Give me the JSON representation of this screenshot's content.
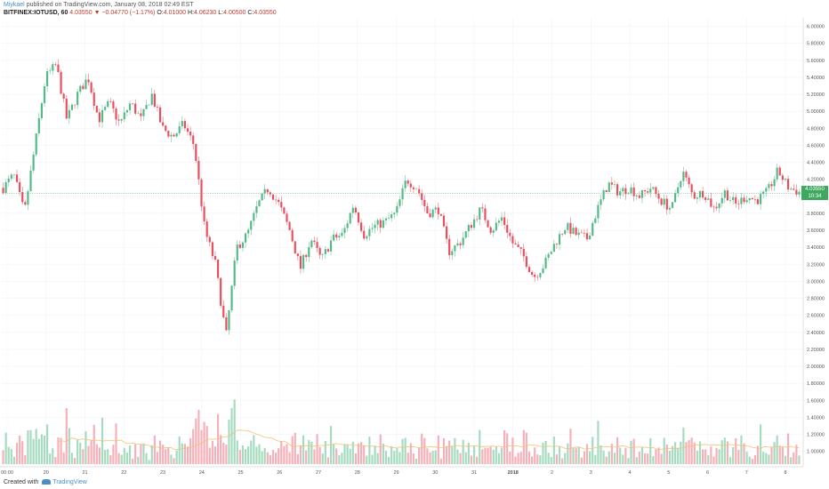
{
  "header": {
    "author": "Miykael",
    "published": "published on TradingView.com, January 08, 2018 02:49 EST",
    "symbol": "BITFINEX:IOTUSD, 60",
    "last": "4.03550",
    "change": "−0.04770 (−1.17%)",
    "o_label": "O:",
    "o_value": "4.01000",
    "h_label": "H:",
    "h_value": "4.06230",
    "l_label": "L:",
    "l_value": "4.00500",
    "c_label": "C:",
    "c_value": "4.03550"
  },
  "footer": {
    "created_with": "Created with",
    "brand": "TradingView"
  },
  "price_tag": {
    "price": "4.03550",
    "countdown": "10:34"
  },
  "colors": {
    "up": "#53b987",
    "down": "#eb4d5c",
    "up_vol": "#a6dbc0",
    "down_vol": "#f5b0b8",
    "grid": "#f0f3fa",
    "ma": "#f0c27a"
  },
  "chart_data": {
    "type": "candlestick",
    "title": "",
    "interval": "60",
    "ylim": [
      0.85,
      6.1
    ],
    "y_ticks": [
      "6.00000",
      "5.80000",
      "5.60000",
      "5.40000",
      "5.20000",
      "5.00000",
      "4.80000",
      "4.60000",
      "4.40000",
      "4.20000",
      "4.00000",
      "3.80000",
      "3.60000",
      "3.40000",
      "3.20000",
      "3.00000",
      "2.80000",
      "2.60000",
      "2.40000",
      "2.20000",
      "2.00000",
      "1.80000",
      "1.60000",
      "1.40000",
      "1.20000",
      "1.00000"
    ],
    "x_ticks": [
      "00:00",
      "20",
      "21",
      "22",
      "23",
      "24",
      "25",
      "26",
      "27",
      "28",
      "29",
      "30",
      "31",
      "2018",
      "2",
      "3",
      "4",
      "5",
      "6",
      "7",
      "8"
    ],
    "close_path": [
      [
        0,
        4.1
      ],
      [
        1,
        4.25
      ],
      [
        2,
        3.8
      ],
      [
        3,
        4.6
      ],
      [
        4,
        5.4
      ],
      [
        5,
        5.55
      ],
      [
        6,
        4.9
      ],
      [
        7,
        5.2
      ],
      [
        8,
        5.4
      ],
      [
        9,
        4.9
      ],
      [
        10,
        5.1
      ],
      [
        11,
        4.85
      ],
      [
        12,
        5.1
      ],
      [
        13,
        4.9
      ],
      [
        14,
        5.2
      ],
      [
        15,
        4.8
      ],
      [
        16,
        4.7
      ],
      [
        17,
        4.85
      ],
      [
        18,
        4.6
      ],
      [
        19,
        3.6
      ],
      [
        20,
        3.2
      ],
      [
        21,
        2.35
      ],
      [
        22,
        3.4
      ],
      [
        23,
        3.55
      ],
      [
        24,
        3.9
      ],
      [
        25,
        4.1
      ],
      [
        26,
        3.9
      ],
      [
        27,
        3.6
      ],
      [
        28,
        3.15
      ],
      [
        29,
        3.5
      ],
      [
        30,
        3.25
      ],
      [
        31,
        3.5
      ],
      [
        32,
        3.55
      ],
      [
        33,
        3.9
      ],
      [
        34,
        3.55
      ],
      [
        35,
        3.65
      ],
      [
        36,
        3.7
      ],
      [
        37,
        3.8
      ],
      [
        38,
        4.2
      ],
      [
        39,
        4.1
      ],
      [
        40,
        3.8
      ],
      [
        41,
        3.85
      ],
      [
        42,
        3.35
      ],
      [
        43,
        3.45
      ],
      [
        44,
        3.65
      ],
      [
        45,
        3.85
      ],
      [
        46,
        3.6
      ],
      [
        47,
        3.75
      ],
      [
        48,
        3.45
      ],
      [
        49,
        3.3
      ],
      [
        50,
        3.05
      ],
      [
        51,
        3.2
      ],
      [
        52,
        3.45
      ],
      [
        53,
        3.65
      ],
      [
        54,
        3.55
      ],
      [
        55,
        3.5
      ],
      [
        56,
        3.85
      ],
      [
        57,
        4.15
      ],
      [
        58,
        4.05
      ],
      [
        59,
        4.1
      ],
      [
        60,
        4.0
      ],
      [
        61,
        4.1
      ],
      [
        62,
        3.95
      ],
      [
        63,
        3.85
      ],
      [
        64,
        4.3
      ],
      [
        65,
        4.0
      ],
      [
        66,
        4.05
      ],
      [
        67,
        3.85
      ],
      [
        68,
        4.05
      ],
      [
        69,
        3.9
      ],
      [
        70,
        4.0
      ],
      [
        71,
        3.95
      ],
      [
        72,
        4.05
      ],
      [
        73,
        4.3
      ],
      [
        74,
        4.1
      ],
      [
        75,
        4.05
      ]
    ],
    "path_x_range": [
      0,
      75
    ],
    "volume_unit": "relative",
    "last_price": 4.0355,
    "moving_average_on_volume": true,
    "grid": true
  }
}
